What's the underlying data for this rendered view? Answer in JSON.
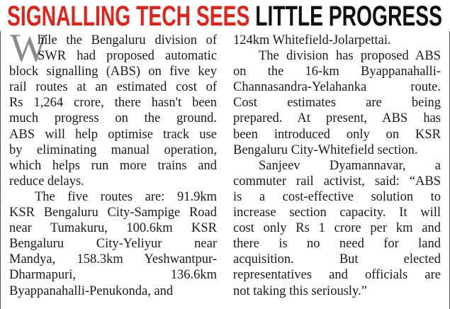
{
  "headline": {
    "red": "SIGNALLING TECH SEES",
    "black": "LITTLE PROGRESS"
  },
  "drop_cap": "W",
  "column1": [
    "hile the Bengaluru division of",
    "SWR had proposed automatic",
    "block signalling (ABS) on five key",
    "rail routes at an estimated cost of",
    "Rs 1,264 crore, there hasn't been",
    "much progress on the ground.",
    "ABS will help optimise track use",
    "by eliminating manual operation,",
    "which helps run more trains and",
    "reduce delays.",
    "The five routes are: 91.9km",
    "KSR Bengaluru City-Sampige Road",
    "near Tumakuru, 100.6km KSR",
    "Bengaluru City-Yeliyur near",
    "Mandya, 158.3km Yeshwantpur-",
    "Dharmapuri, 136.6km",
    "Byappanahalli-Penukonda, and"
  ],
  "column2": [
    "124km Whitefield-Jolarpettai.",
    "The division has proposed ABS",
    "on the 16-km Byappanahalli-",
    "Channasandra-Yelahanka route.",
    "Cost estimates are being",
    "prepared. At present, ABS has",
    "been introduced only on KSR",
    "Bengaluru City-Whitefield section.",
    "Sanjeev Dyamannavar, a",
    "commuter rail activist, said: “ABS",
    "is a cost-effective solution to",
    "increase section capacity. It will",
    "cost only Rs 1 crore per km and",
    "there is no need for land",
    "acquisition. But elected",
    "representatives and officials are",
    "not taking this seriously.”"
  ]
}
